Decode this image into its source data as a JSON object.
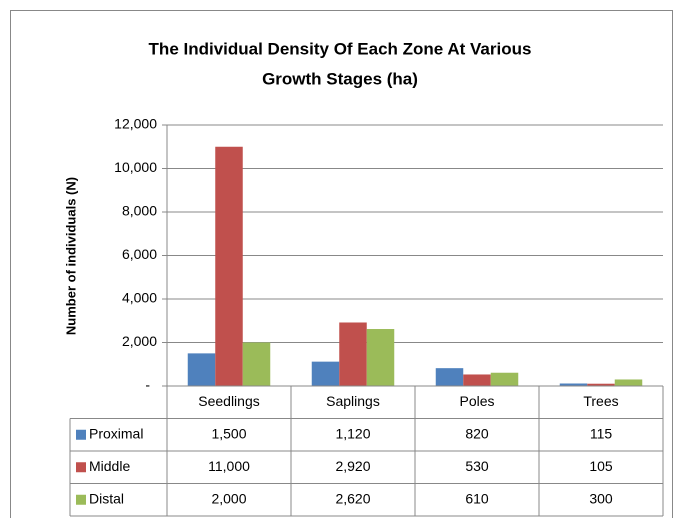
{
  "chart_data": {
    "type": "bar",
    "title": [
      "The Individual Density Of Each Zone At Various",
      "Growth Stages  (ha)"
    ],
    "y_label": "Number of individuals (N)",
    "categories": [
      "Seedlings",
      "Saplings",
      "Poles",
      "Trees"
    ],
    "series": [
      {
        "name": "Proximal",
        "color": "#4f81bd",
        "values": [
          1500,
          1120,
          820,
          115
        ],
        "value_labels": [
          "1,500",
          "1,120",
          "820",
          "115"
        ]
      },
      {
        "name": "Middle",
        "color": "#c0504d",
        "values": [
          11000,
          2920,
          530,
          105
        ],
        "value_labels": [
          "11,000",
          "2,920",
          "530",
          "105"
        ]
      },
      {
        "name": "Distal",
        "color": "#9bbb59",
        "values": [
          2000,
          2620,
          610,
          300
        ],
        "value_labels": [
          "2,000",
          "2,620",
          "610",
          "300"
        ]
      }
    ],
    "ylim": [
      0,
      12000
    ],
    "yticks": [
      {
        "value": 0,
        "label": "-"
      },
      {
        "value": 2000,
        "label": "2,000"
      },
      {
        "value": 4000,
        "label": "4,000"
      },
      {
        "value": 6000,
        "label": "6,000"
      },
      {
        "value": 8000,
        "label": "8,000"
      },
      {
        "value": 10000,
        "label": "10,000"
      },
      {
        "value": 12000,
        "label": "12,000"
      }
    ],
    "grid": true
  }
}
